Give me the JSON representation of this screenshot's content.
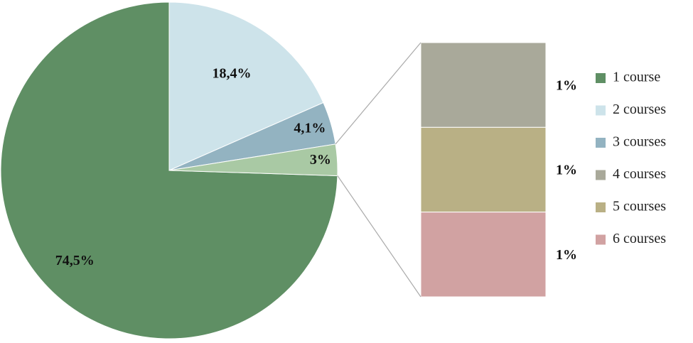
{
  "chart_data": {
    "type": "pie",
    "categories": [
      "1 course",
      "2 courses",
      "3 courses",
      null
    ],
    "values": [
      74.5,
      18.4,
      4.1,
      3
    ],
    "value_labels": [
      "74,5%",
      "18,4%",
      "4,1%",
      "3%"
    ],
    "colors": [
      "#5f8f64",
      "#cde3ea",
      "#93b3c1",
      "#a9c9a4"
    ],
    "breakdown": {
      "type": "bar",
      "categories": [
        "4 courses",
        "5 courses",
        "6 courses"
      ],
      "values": [
        1,
        1,
        1
      ],
      "value_labels": [
        "1%",
        "1%",
        "1%"
      ],
      "colors": [
        "#a9a99a",
        "#b9b085",
        "#d1a2a2"
      ]
    }
  }
}
